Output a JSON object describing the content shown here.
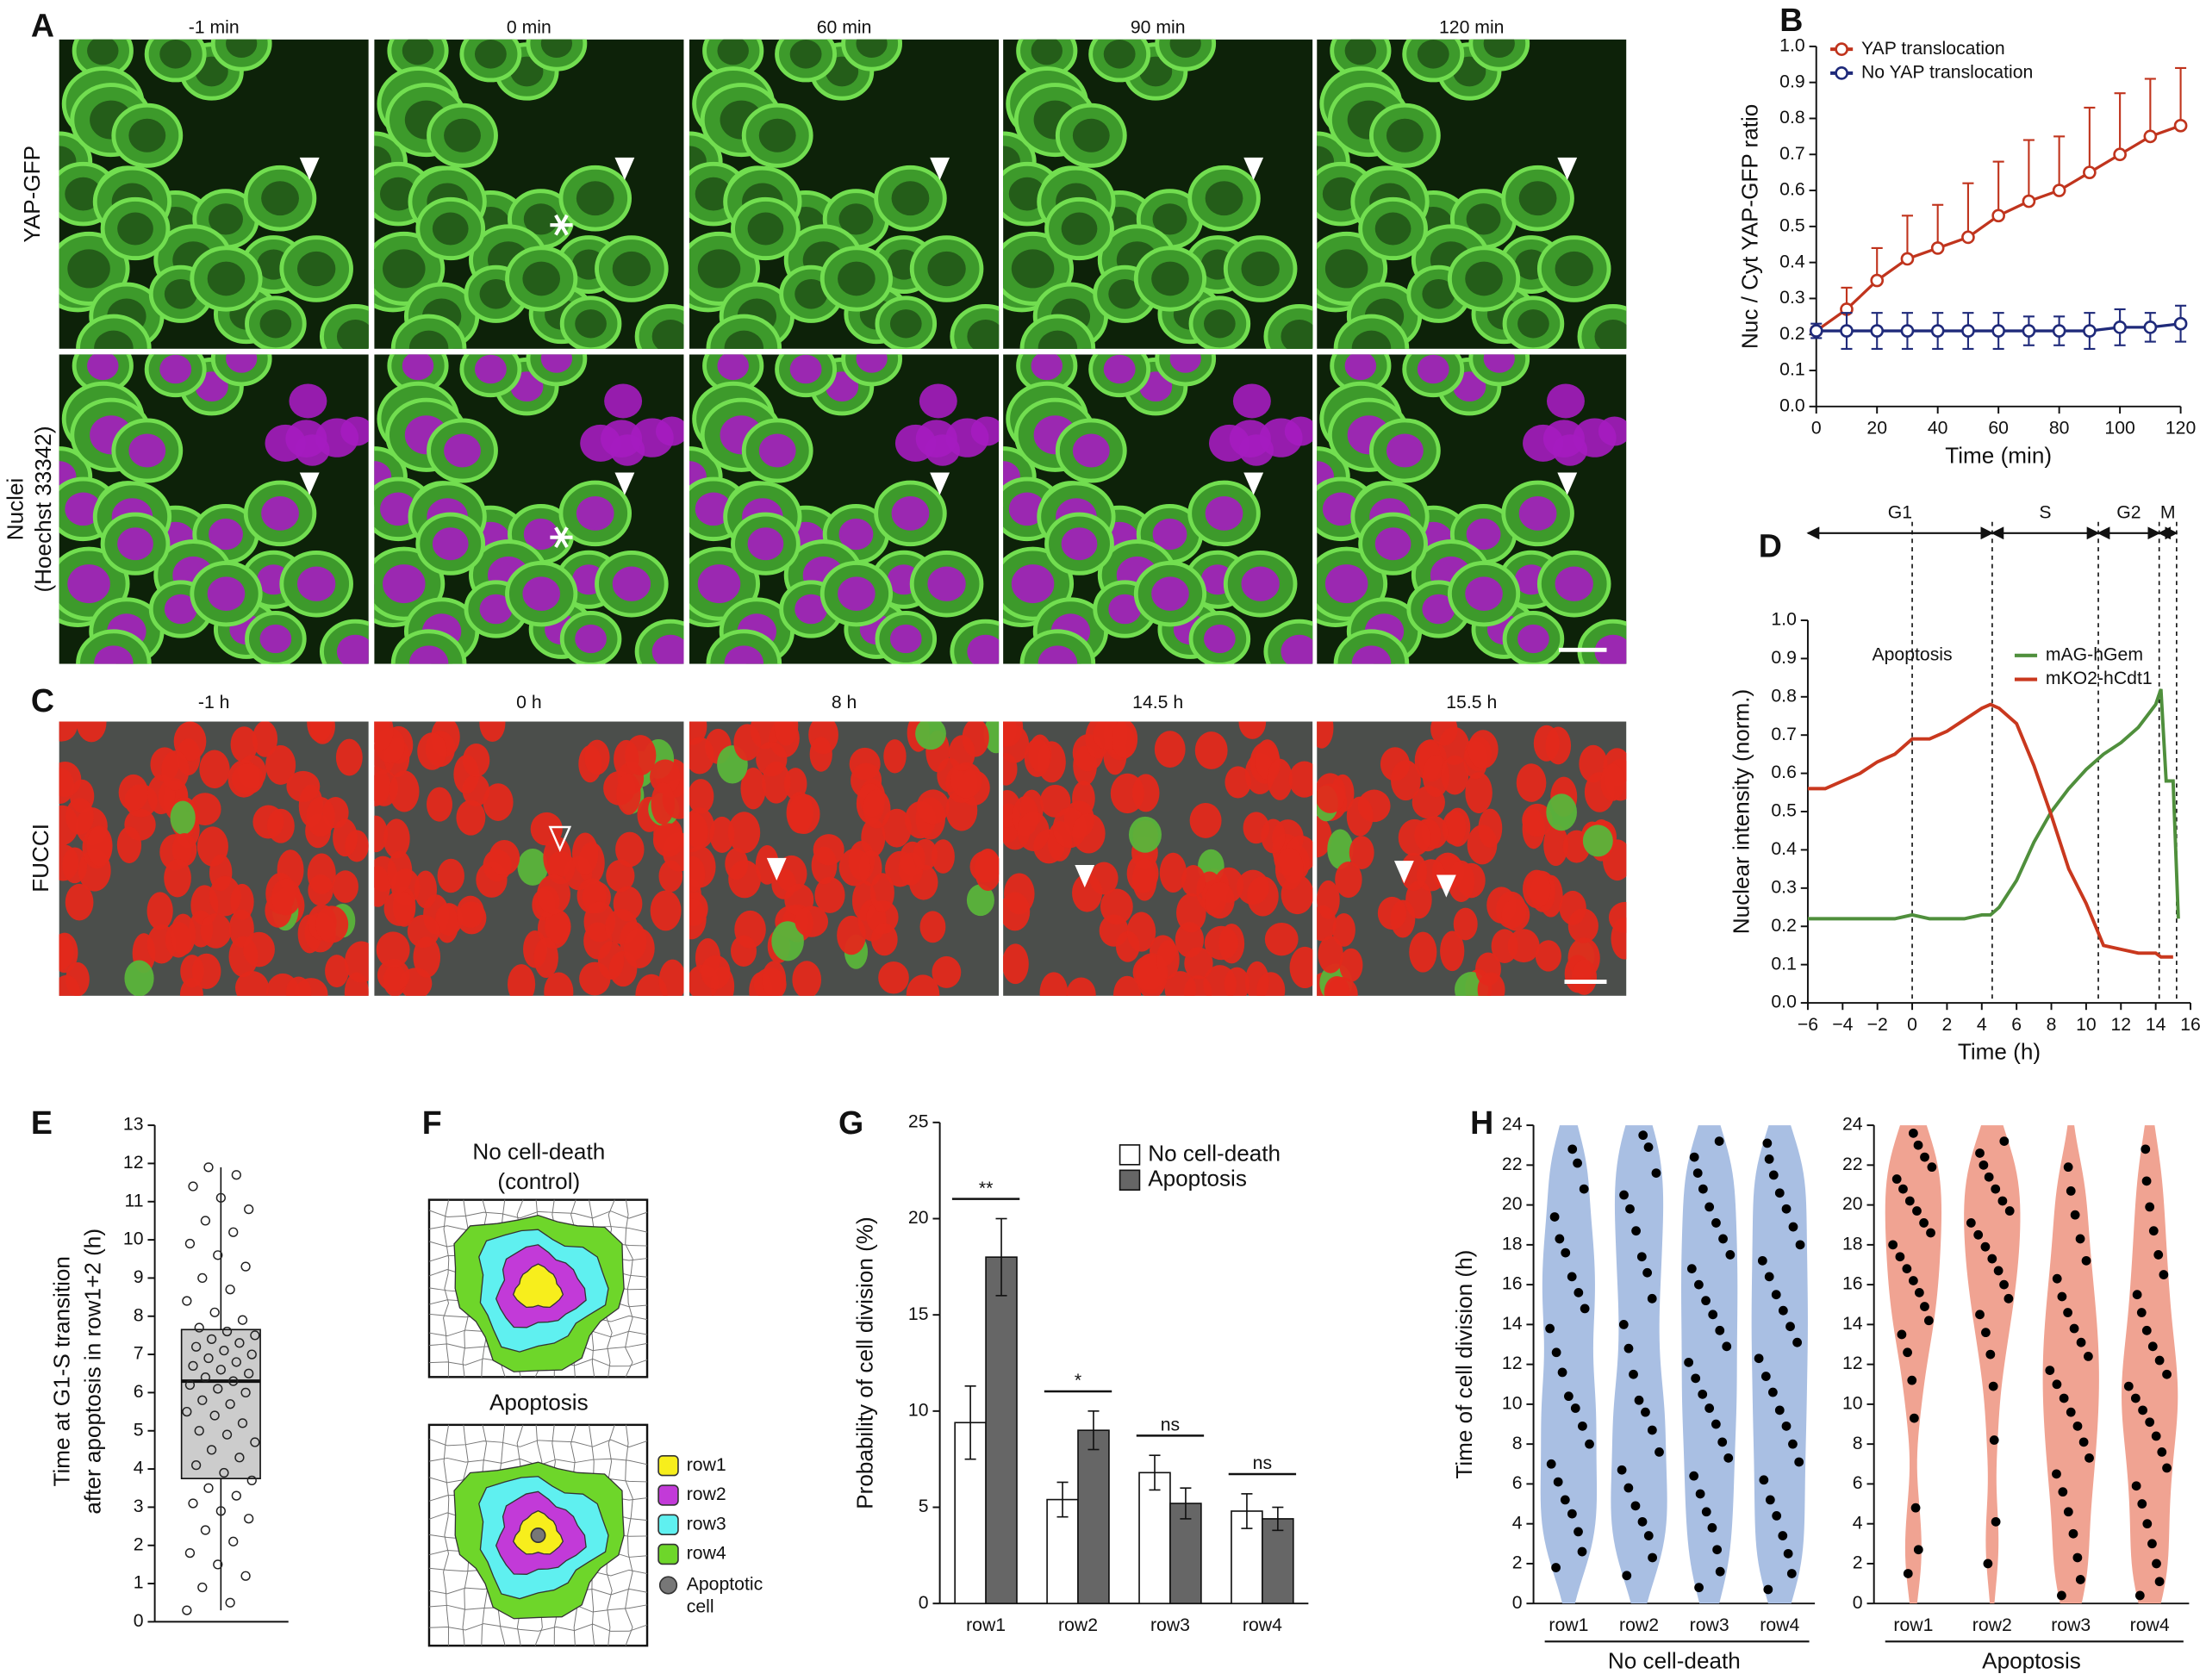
{
  "figure": {
    "panel_labels": [
      "A",
      "B",
      "C",
      "D",
      "E",
      "F",
      "G",
      "H"
    ],
    "A": {
      "times": [
        "-1 min",
        "0 min",
        "60 min",
        "90 min",
        "120 min"
      ],
      "channels": [
        "YAP-GFP",
        "Nuclei",
        "(Hoechst 33342)"
      ]
    },
    "C": {
      "times": [
        "-1 h",
        "0 h",
        "8 h",
        "14.5 h",
        "15.5 h"
      ],
      "channel": "FUCCI"
    },
    "F": {
      "control_title": [
        "No cell-death",
        "(control)"
      ],
      "apoptosis_title": "Apoptosis",
      "legend": [
        {
          "label": "row1",
          "color": "#f7ee1c"
        },
        {
          "label": "row2",
          "color": "#c23ad8"
        },
        {
          "label": "row3",
          "color": "#5ff0f0"
        },
        {
          "label": "row4",
          "color": "#6ed62a"
        }
      ],
      "apoptotic_cell": {
        "label": [
          "Apoptotic",
          "cell"
        ],
        "color": "#777777"
      }
    }
  },
  "chart_data": [
    {
      "type": "line",
      "xlabel": "Time (min)",
      "ylabel": "Nuc / Cyt YAP-GFP ratio",
      "legend": "upper left",
      "markers": "open-circle",
      "x": [
        0,
        10,
        20,
        30,
        40,
        50,
        60,
        70,
        80,
        90,
        100,
        110,
        120
      ],
      "series": [
        {
          "name": "YAP translocation",
          "color": "#c0341d",
          "error_direction": "up",
          "values": [
            0.21,
            0.27,
            0.35,
            0.41,
            0.44,
            0.47,
            0.53,
            0.57,
            0.6,
            0.65,
            0.7,
            0.75,
            0.78
          ],
          "errors": [
            0.01,
            0.06,
            0.09,
            0.12,
            0.12,
            0.15,
            0.15,
            0.17,
            0.15,
            0.18,
            0.17,
            0.16,
            0.16
          ]
        },
        {
          "name": "No YAP translocation",
          "color": "#1f2a7a",
          "error_direction": "both",
          "values": [
            0.21,
            0.21,
            0.21,
            0.21,
            0.21,
            0.21,
            0.21,
            0.21,
            0.21,
            0.21,
            0.22,
            0.22,
            0.23
          ],
          "errors": [
            0.02,
            0.05,
            0.05,
            0.05,
            0.05,
            0.05,
            0.05,
            0.04,
            0.04,
            0.05,
            0.05,
            0.04,
            0.05
          ]
        }
      ],
      "xlim": [
        0,
        120
      ],
      "xticks": [
        0,
        20,
        40,
        60,
        80,
        100,
        120
      ],
      "ylim": [
        0,
        1
      ],
      "yticks": [
        {
          "value": 0,
          "label": "0.0"
        },
        {
          "value": 0.1,
          "label": "0.1"
        },
        {
          "value": 0.2,
          "label": "0.2"
        },
        {
          "value": 0.3,
          "label": "0.3"
        },
        {
          "value": 0.4,
          "label": "0.4"
        },
        {
          "value": 0.5,
          "label": "0.5"
        },
        {
          "value": 0.6,
          "label": "0.6"
        },
        {
          "value": 0.7,
          "label": "0.7"
        },
        {
          "value": 0.8,
          "label": "0.8"
        },
        {
          "value": 0.9,
          "label": "0.9"
        },
        {
          "value": 1,
          "label": "1.0"
        }
      ]
    },
    {
      "type": "line",
      "xlabel": "Time (h)",
      "ylabel": "Nuclear intensity (norm.)",
      "legend": "upper right",
      "x": [
        -6,
        -5,
        -4,
        -3,
        -2,
        -1,
        0,
        1,
        2,
        3,
        4,
        4.5,
        5,
        6,
        7,
        8,
        9,
        10,
        11,
        12,
        13,
        14,
        14.3,
        14.6,
        15,
        15.3
      ],
      "series": [
        {
          "name": "mAG-hGem",
          "color": "#4f8f3c",
          "values": [
            0.22,
            0.22,
            0.22,
            0.22,
            0.22,
            0.22,
            0.23,
            0.22,
            0.22,
            0.22,
            0.23,
            0.23,
            0.25,
            0.32,
            0.42,
            0.5,
            0.56,
            0.61,
            0.65,
            0.68,
            0.72,
            0.78,
            0.82,
            0.58,
            0.58,
            0.22
          ]
        },
        {
          "name": "mKO2-hCdt1",
          "color": "#c9381e",
          "values": [
            0.56,
            0.56,
            0.58,
            0.6,
            0.63,
            0.65,
            0.69,
            0.69,
            0.71,
            0.74,
            0.77,
            0.78,
            0.77,
            0.73,
            0.62,
            0.49,
            0.35,
            0.26,
            0.15,
            0.14,
            0.13,
            0.13,
            0.12,
            0.12,
            0.12,
            null
          ]
        }
      ],
      "xlim": [
        -6,
        16
      ],
      "xticks": [
        {
          "value": -6,
          "label": "−6"
        },
        {
          "value": -4,
          "label": "−4"
        },
        {
          "value": -2,
          "label": "−2"
        },
        0,
        2,
        4,
        6,
        8,
        10,
        12,
        14,
        16
      ],
      "ylim": [
        0,
        1
      ],
      "yticks": [
        {
          "value": 0,
          "label": "0.0"
        },
        {
          "value": 0.1,
          "label": "0.1"
        },
        {
          "value": 0.2,
          "label": "0.2"
        },
        {
          "value": 0.3,
          "label": "0.3"
        },
        {
          "value": 0.4,
          "label": "0.4"
        },
        {
          "value": 0.5,
          "label": "0.5"
        },
        {
          "value": 0.6,
          "label": "0.6"
        },
        {
          "value": 0.7,
          "label": "0.7"
        },
        {
          "value": 0.8,
          "label": "0.8"
        },
        {
          "value": 0.9,
          "label": "0.9"
        },
        {
          "value": 1,
          "label": "1.0"
        }
      ],
      "vlines": [
        0,
        4.6,
        10.7,
        14.2,
        15.2
      ],
      "phases": [
        {
          "label": "G1",
          "start": -6,
          "end": 4.6
        },
        {
          "label": "S",
          "start": 4.6,
          "end": 10.7
        },
        {
          "label": "G2",
          "start": 10.7,
          "end": 14.2
        },
        {
          "label": "M",
          "start": 14.2,
          "end": 15.2
        }
      ],
      "annotation": {
        "text": "Apoptosis",
        "x": 0
      }
    },
    {
      "type": "box",
      "ylabel": [
        "Time at G1-S transition",
        "after apoptosis in row1+2 (h)"
      ],
      "ylim": [
        0,
        13
      ],
      "yticks": [
        0,
        1,
        2,
        3,
        4,
        5,
        6,
        7,
        8,
        9,
        10,
        11,
        12,
        13
      ],
      "box": {
        "whisker_low": 0.3,
        "q1": 3.75,
        "median": 6.3,
        "q3": 7.65,
        "whisker_high": 11.9
      },
      "points": [
        0.3,
        0.5,
        0.9,
        1.2,
        1.5,
        1.8,
        2.1,
        2.4,
        2.7,
        2.9,
        3.1,
        3.3,
        3.5,
        3.7,
        3.9,
        4.1,
        4.3,
        4.5,
        4.7,
        4.9,
        5.0,
        5.2,
        5.4,
        5.5,
        5.7,
        5.8,
        6.0,
        6.1,
        6.2,
        6.3,
        6.4,
        6.5,
        6.6,
        6.7,
        6.8,
        6.9,
        7.0,
        7.1,
        7.2,
        7.3,
        7.4,
        7.5,
        7.6,
        7.7,
        7.9,
        8.1,
        8.4,
        8.7,
        9.0,
        9.3,
        9.6,
        9.9,
        10.2,
        10.5,
        10.8,
        11.1,
        11.4,
        11.7,
        11.9
      ]
    },
    {
      "type": "grouped_bar",
      "ylabel": "Probability of cell division  (%)",
      "legend": "upper right",
      "categories": [
        "row1",
        "row2",
        "row3",
        "row4"
      ],
      "series": [
        {
          "name": "No cell-death",
          "color": "#ffffff",
          "values": [
            9.4,
            5.4,
            6.8,
            4.8
          ],
          "errors": [
            1.9,
            0.9,
            0.9,
            0.9
          ]
        },
        {
          "name": "Apoptosis",
          "color": "#666666",
          "values": [
            18.0,
            9.0,
            5.2,
            4.4
          ],
          "errors": [
            2.0,
            1.0,
            0.8,
            0.6
          ]
        }
      ],
      "ylim": [
        0,
        25
      ],
      "yticks": [
        0,
        5,
        10,
        15,
        20,
        25
      ],
      "significance": [
        "**",
        "*",
        "ns",
        "ns"
      ]
    },
    {
      "type": "violin",
      "ylabel": "Time of cell division (h)",
      "group_label": "No cell-death",
      "color": "#a9bfe3",
      "categories": [
        "row1",
        "row2",
        "row3",
        "row4"
      ],
      "points": [
        [
          1.8,
          2.6,
          3.6,
          4.5,
          5.2,
          6.1,
          7.0,
          8.0,
          8.9,
          9.8,
          10.4,
          11.6,
          12.6,
          13.8,
          14.8,
          15.6,
          16.4,
          17.6,
          18.3,
          19.4,
          20.8,
          22.1,
          22.8
        ],
        [
          1.4,
          2.3,
          3.4,
          4.1,
          4.9,
          5.8,
          6.7,
          7.6,
          8.7,
          9.6,
          10.2,
          11.5,
          12.8,
          14.0,
          15.3,
          16.6,
          17.4,
          18.7,
          19.8,
          20.5,
          21.6,
          22.9,
          23.5
        ],
        [
          0.8,
          1.6,
          2.7,
          3.8,
          4.6,
          5.5,
          6.4,
          7.3,
          8.1,
          9.0,
          9.8,
          10.5,
          11.3,
          12.1,
          12.9,
          13.7,
          14.5,
          15.2,
          16.0,
          16.8,
          17.5,
          18.3,
          19.1,
          19.9,
          20.8,
          21.6,
          22.4,
          23.2
        ],
        [
          0.7,
          1.5,
          2.5,
          3.4,
          4.4,
          5.2,
          6.2,
          7.1,
          8.0,
          8.9,
          9.7,
          10.6,
          11.4,
          12.3,
          13.1,
          13.9,
          14.7,
          15.5,
          16.4,
          17.2,
          18.0,
          18.9,
          19.8,
          20.6,
          21.5,
          22.3,
          23.1
        ]
      ],
      "ylim": [
        0,
        24
      ],
      "yticks": [
        0,
        2,
        4,
        6,
        8,
        10,
        12,
        14,
        16,
        18,
        20,
        22,
        24
      ]
    },
    {
      "type": "violin",
      "group_label": "Apoptosis",
      "color": "#f0a392",
      "categories": [
        "row1",
        "row2",
        "row3",
        "row4"
      ],
      "points": [
        [
          1.5,
          2.7,
          4.8,
          9.3,
          11.2,
          12.6,
          13.5,
          14.2,
          14.9,
          15.6,
          16.2,
          16.8,
          17.4,
          18.0,
          18.6,
          19.1,
          19.7,
          20.2,
          20.8,
          21.3,
          21.9,
          22.4,
          23.0,
          23.6
        ],
        [
          2.0,
          4.1,
          8.2,
          10.9,
          12.5,
          13.6,
          14.5,
          15.3,
          16.0,
          16.7,
          17.3,
          17.9,
          18.5,
          19.1,
          19.7,
          20.2,
          20.8,
          21.4,
          22.0,
          22.6,
          23.2
        ],
        [
          0.4,
          1.2,
          2.3,
          3.5,
          4.6,
          5.6,
          6.5,
          7.3,
          8.1,
          8.9,
          9.6,
          10.3,
          11.0,
          11.7,
          12.4,
          13.1,
          13.8,
          14.6,
          15.4,
          16.3,
          17.2,
          18.3,
          19.5,
          20.7,
          21.9
        ],
        [
          0.4,
          1.1,
          2.0,
          3.0,
          4.0,
          5.0,
          5.9,
          6.8,
          7.6,
          8.4,
          9.1,
          9.7,
          10.3,
          10.9,
          11.5,
          12.2,
          12.9,
          13.7,
          14.6,
          15.5,
          16.5,
          17.5,
          18.7,
          19.9,
          21.2,
          22.8
        ]
      ],
      "ylim": [
        0,
        24
      ],
      "yticks": [
        0,
        2,
        4,
        6,
        8,
        10,
        12,
        14,
        16,
        18,
        20,
        22,
        24
      ]
    }
  ]
}
